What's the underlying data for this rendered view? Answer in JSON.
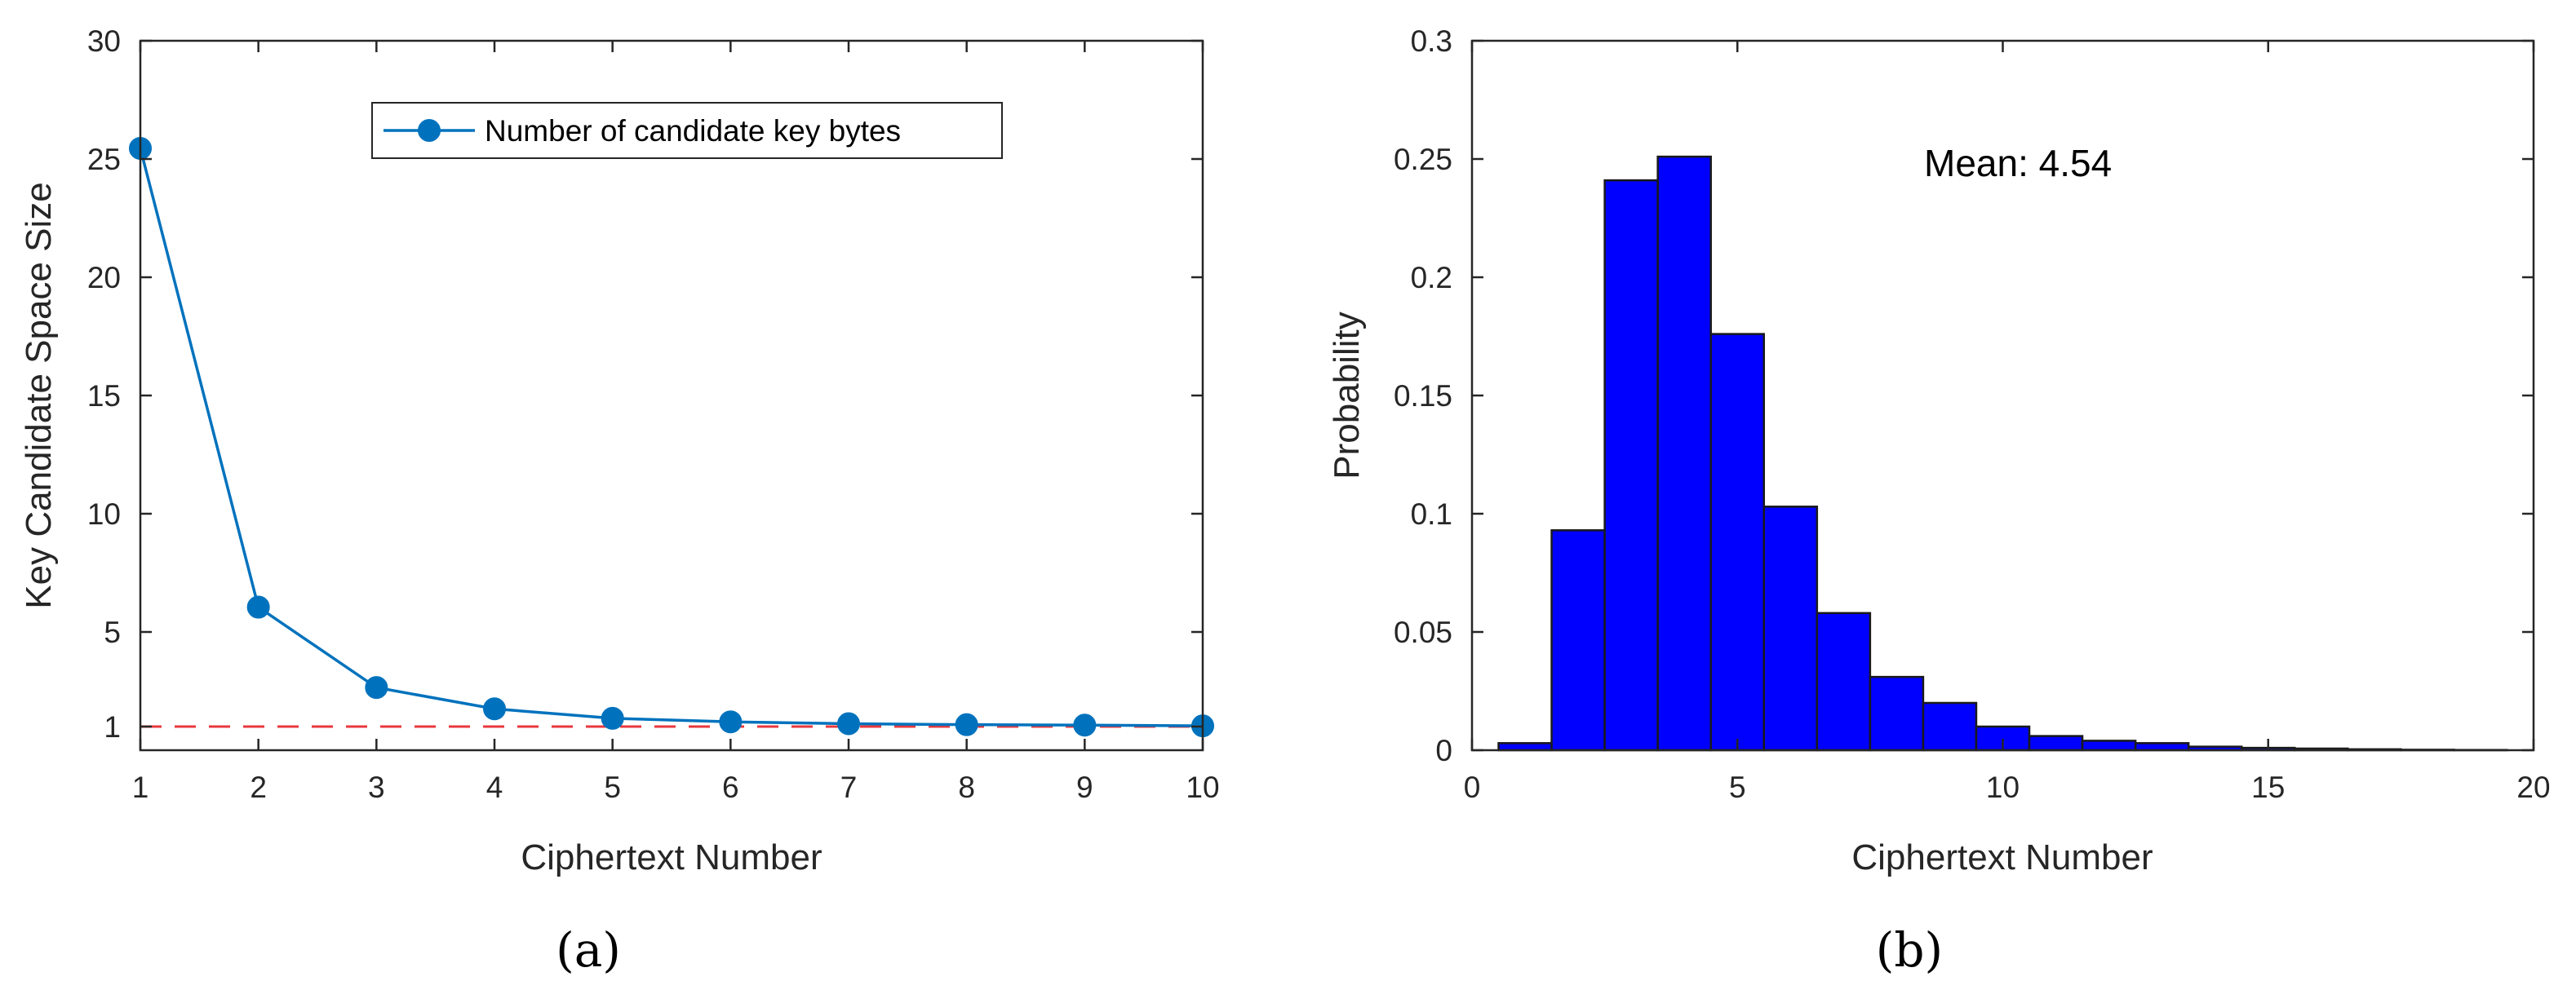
{
  "chart_data": [
    {
      "type": "line",
      "xlabel": "Ciphertext Number",
      "ylabel": "Key Candidate Space Size",
      "xlim": [
        1,
        10
      ],
      "ylim": [
        0,
        30
      ],
      "xticks": [
        1,
        2,
        3,
        4,
        5,
        6,
        7,
        8,
        9,
        10
      ],
      "yticks": [
        1,
        5,
        10,
        15,
        20,
        25,
        30
      ],
      "grid": false,
      "legend_position": "top-center",
      "series": [
        {
          "name": "Number of candidate key bytes",
          "color": "#0072BD",
          "marker": "circle",
          "x": [
            1,
            2,
            3,
            4,
            5,
            6,
            7,
            8,
            9,
            10
          ],
          "y": [
            25.45,
            6.05,
            2.65,
            1.75,
            1.35,
            1.2,
            1.12,
            1.08,
            1.06,
            1.03
          ]
        }
      ],
      "reference_line": {
        "y": 1,
        "color": "#E8383D",
        "style": "dashed"
      },
      "panel_label": "(a)"
    },
    {
      "type": "bar",
      "xlabel": "Ciphertext Number",
      "ylabel": "Probability",
      "xlim": [
        0,
        20
      ],
      "ylim": [
        0,
        0.3
      ],
      "xticks": [
        0,
        5,
        10,
        15,
        20
      ],
      "yticks": [
        0,
        0.05,
        0.1,
        0.15,
        0.2,
        0.25,
        0.3
      ],
      "grid": false,
      "bar_color": "#0000FF",
      "bin_width": 1,
      "categories": [
        1,
        2,
        3,
        4,
        5,
        6,
        7,
        8,
        9,
        10,
        11,
        12,
        13,
        14,
        15,
        16,
        17,
        18,
        19
      ],
      "values": [
        0.003,
        0.093,
        0.241,
        0.251,
        0.176,
        0.103,
        0.058,
        0.031,
        0.02,
        0.01,
        0.006,
        0.004,
        0.003,
        0.0015,
        0.001,
        0.0007,
        0.0004,
        0.0002,
        0.0001
      ],
      "annotation": "Mean: 4.54",
      "panel_label": "(b)"
    }
  ]
}
